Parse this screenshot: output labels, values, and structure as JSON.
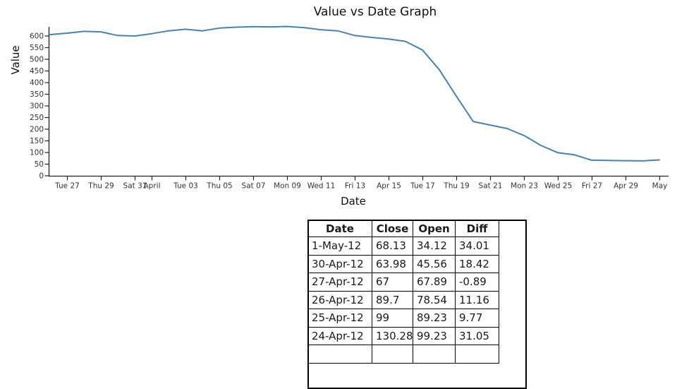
{
  "chart_data": {
    "type": "line",
    "title": "Value vs Date Graph",
    "xlabel": "Date",
    "ylabel": "Value",
    "legend_position": "none",
    "grid": false,
    "line_color": "#4682b4",
    "ylim": [
      0,
      640
    ],
    "yticks": [
      0,
      50,
      100,
      150,
      200,
      250,
      300,
      350,
      400,
      450,
      500,
      550,
      600
    ],
    "x": [
      "2012-03-26",
      "2012-03-27",
      "2012-03-28",
      "2012-03-29",
      "2012-03-30",
      "2012-03-31",
      "2012-04-01",
      "2012-04-02",
      "2012-04-03",
      "2012-04-04",
      "2012-04-05",
      "2012-04-06",
      "2012-04-07",
      "2012-04-08",
      "2012-04-09",
      "2012-04-10",
      "2012-04-11",
      "2012-04-12",
      "2012-04-13",
      "2012-04-14",
      "2012-04-15",
      "2012-04-16",
      "2012-04-17",
      "2012-04-18",
      "2012-04-19",
      "2012-04-20",
      "2012-04-21",
      "2012-04-22",
      "2012-04-23",
      "2012-04-24",
      "2012-04-25",
      "2012-04-26",
      "2012-04-27",
      "2012-04-28",
      "2012-04-29",
      "2012-04-30",
      "2012-05-01"
    ],
    "values": [
      606,
      612,
      620,
      618,
      602,
      600,
      610,
      622,
      629,
      622,
      634,
      638,
      640,
      639,
      641,
      636,
      627,
      622,
      602,
      594,
      587,
      577,
      540,
      455,
      342,
      233,
      218,
      203,
      173,
      130.28,
      99,
      89.7,
      67,
      66,
      65,
      63.98,
      68.13
    ],
    "xticks": [
      {
        "day": 1,
        "label": "Tue 27"
      },
      {
        "day": 3,
        "label": "Thu 29"
      },
      {
        "day": 5,
        "label": "Sat 31"
      },
      {
        "day": 6,
        "label": "April"
      },
      {
        "day": 8,
        "label": "Tue 03"
      },
      {
        "day": 10,
        "label": "Thu 05"
      },
      {
        "day": 12,
        "label": "Sat 07"
      },
      {
        "day": 14,
        "label": "Mon 09"
      },
      {
        "day": 16,
        "label": "Wed 11"
      },
      {
        "day": 18,
        "label": "Fri 13"
      },
      {
        "day": 20,
        "label": "Apr 15"
      },
      {
        "day": 22,
        "label": "Tue 17"
      },
      {
        "day": 24,
        "label": "Thu 19"
      },
      {
        "day": 26,
        "label": "Sat 21"
      },
      {
        "day": 28,
        "label": "Mon 23"
      },
      {
        "day": 30,
        "label": "Wed 25"
      },
      {
        "day": 32,
        "label": "Fri 27"
      },
      {
        "day": 34,
        "label": "Apr 29"
      },
      {
        "day": 36,
        "label": "May"
      }
    ]
  },
  "table": {
    "headers": [
      "Date",
      "Close",
      "Open",
      "Diff"
    ],
    "rows": [
      [
        "1-May-12",
        "68.13",
        "34.12",
        "34.01"
      ],
      [
        "30-Apr-12",
        "63.98",
        "45.56",
        "18.42"
      ],
      [
        "27-Apr-12",
        "67",
        "67.89",
        "-0.89"
      ],
      [
        "26-Apr-12",
        "89.7",
        "78.54",
        "11.16"
      ],
      [
        "25-Apr-12",
        "99",
        "89.23",
        "9.77"
      ],
      [
        "24-Apr-12",
        "130.28",
        "99.23",
        "31.05"
      ]
    ]
  }
}
